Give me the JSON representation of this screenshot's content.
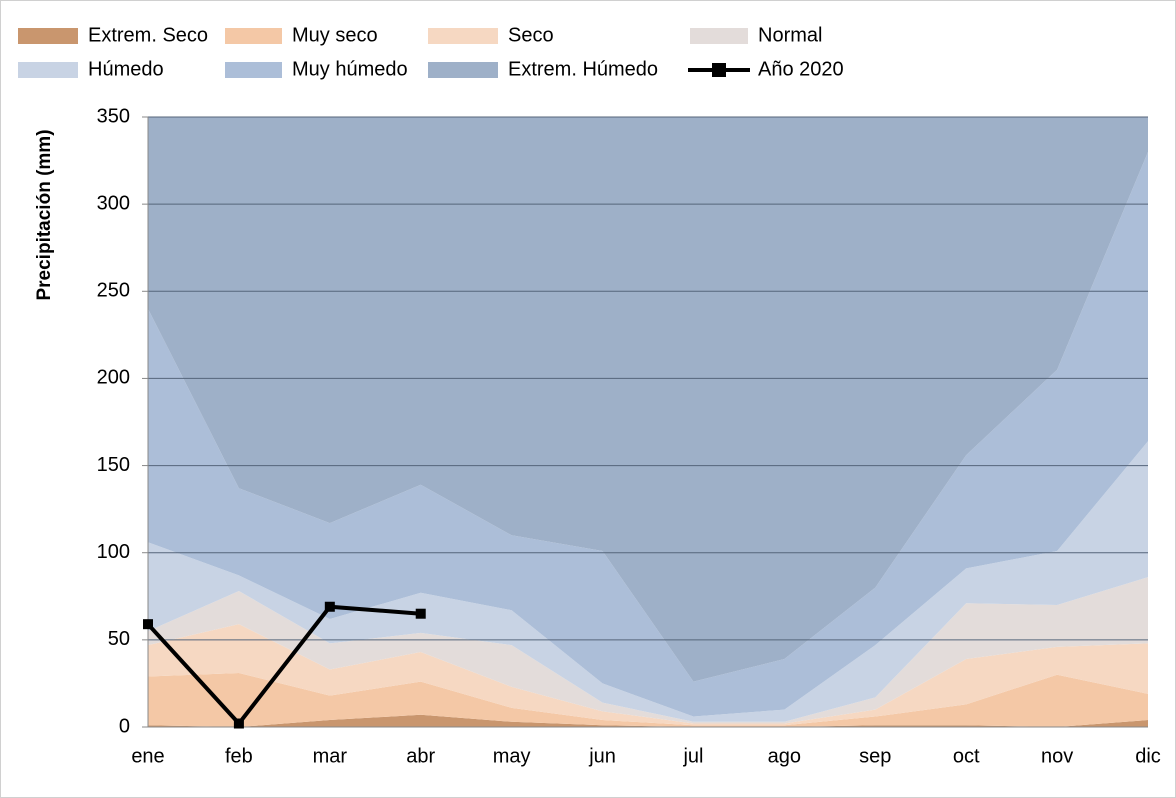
{
  "chart_data": {
    "type": "stacked_area_line",
    "y_label": "Precipitación (mm)",
    "categories": [
      "ene",
      "feb",
      "mar",
      "abr",
      "may",
      "jun",
      "jul",
      "ago",
      "sep",
      "oct",
      "nov",
      "dic"
    ],
    "ylim": [
      0,
      350
    ],
    "yticks": [
      0,
      50,
      100,
      150,
      200,
      250,
      300,
      350
    ],
    "grid": true,
    "series": [
      {
        "name": "Extrem. Seco",
        "color": "#c9966e",
        "values": [
          1,
          0,
          4,
          7,
          3,
          1,
          0,
          0,
          1,
          1,
          0,
          4
        ]
      },
      {
        "name": "Muy seco",
        "color": "#f4c8a6",
        "values": [
          28,
          31,
          14,
          19,
          8,
          3,
          1,
          1,
          5,
          12,
          30,
          15
        ]
      },
      {
        "name": "Seco",
        "color": "#f6d8c2",
        "values": [
          18,
          28,
          15,
          17,
          12,
          5,
          1,
          1,
          4,
          26,
          16,
          29
        ]
      },
      {
        "name": "Normal",
        "color": "#e3dcda",
        "values": [
          8,
          19,
          15,
          11,
          24,
          5,
          1,
          1,
          7,
          32,
          24,
          38
        ]
      },
      {
        "name": "Húmedo",
        "color": "#c8d3e4",
        "values": [
          51,
          9,
          14,
          23,
          20,
          11,
          3,
          7,
          30,
          20,
          31,
          78
        ]
      },
      {
        "name": "Muy húmedo",
        "color": "#acbed8",
        "values": [
          134,
          50,
          55,
          62,
          43,
          76,
          20,
          29,
          33,
          65,
          104,
          166
        ]
      },
      {
        "name": "Extrem. Húmedo",
        "color": "#9eb0c8",
        "values": [
          110,
          213,
          233,
          211,
          240,
          249,
          324,
          311,
          270,
          194,
          145,
          20
        ]
      },
      {
        "name": "Año 2020",
        "color": "#000000",
        "type": "line",
        "values": [
          59,
          2,
          69,
          65,
          null,
          null,
          null,
          null,
          null,
          null,
          null,
          null
        ]
      }
    ]
  }
}
